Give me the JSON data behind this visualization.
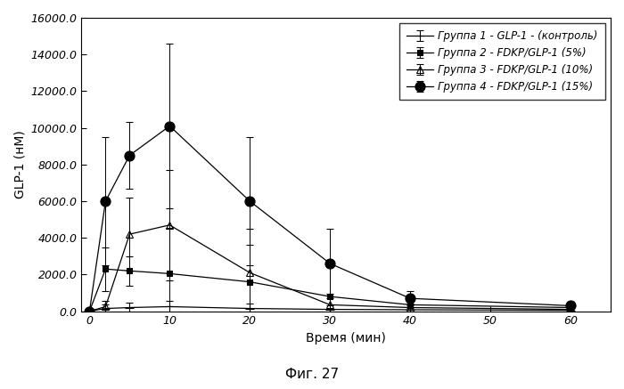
{
  "xlabel": "Время (мин)",
  "ylabel": "GLP-1 (нМ)",
  "caption": "Фиг. 27",
  "xlim": [
    -1,
    65
  ],
  "ylim": [
    0,
    16000
  ],
  "xticks": [
    0,
    10,
    20,
    30,
    40,
    50,
    60
  ],
  "xtick_labels": [
    "0",
    "10",
    "20",
    "30",
    "40",
    "50",
    "60"
  ],
  "yticks": [
    0.0,
    2000.0,
    4000.0,
    6000.0,
    8000.0,
    10000.0,
    12000.0,
    14000.0,
    16000.0
  ],
  "ytick_labels": [
    "0.0",
    "2000.0",
    "4000.0",
    "6000.0",
    "8000.0",
    "10000.0",
    "12000.0",
    "14000.0",
    "16000.0"
  ],
  "series": [
    {
      "label": "Группа 1 - GLP-1 - (контроль)",
      "x": [
        0,
        2,
        5,
        10,
        20,
        30,
        40,
        60
      ],
      "y": [
        0,
        150,
        200,
        250,
        150,
        100,
        80,
        50
      ],
      "yerr": [
        0,
        200,
        250,
        300,
        250,
        200,
        100,
        80
      ],
      "marker": "+",
      "markersize": 7,
      "linewidth": 0.9,
      "color": "#000000",
      "markerfacecolor": "none"
    },
    {
      "label": "Группа 2 - FDKP/GLP-1 (5%)",
      "x": [
        0,
        2,
        5,
        10,
        20,
        30,
        40,
        60
      ],
      "y": [
        0,
        2300,
        2200,
        2050,
        1600,
        800,
        350,
        200
      ],
      "yerr": [
        0,
        1200,
        800,
        2500,
        2000,
        1600,
        400,
        200
      ],
      "marker": "s",
      "markersize": 5,
      "linewidth": 0.9,
      "color": "#000000",
      "markerfacecolor": "#000000"
    },
    {
      "label": "Группа 3 - FDKP/GLP-1 (10%)",
      "x": [
        0,
        2,
        5,
        10,
        20,
        30,
        40,
        60
      ],
      "y": [
        0,
        250,
        4200,
        4700,
        2100,
        350,
        200,
        100
      ],
      "yerr": [
        0,
        300,
        2000,
        3000,
        2400,
        600,
        200,
        150
      ],
      "marker": "^",
      "markersize": 6,
      "linewidth": 0.9,
      "color": "#000000",
      "markerfacecolor": "none"
    },
    {
      "label": "Группа 4 - FDKP/GLP-1 (15%)",
      "x": [
        0,
        2,
        5,
        10,
        20,
        30,
        40,
        60
      ],
      "y": [
        0,
        6000,
        8500,
        10100,
        6000,
        2600,
        700,
        300
      ],
      "yerr": [
        0,
        3500,
        1800,
        4500,
        3500,
        1900,
        400,
        200
      ],
      "marker": "o",
      "markersize": 8,
      "linewidth": 0.9,
      "color": "#000000",
      "markerfacecolor": "#000000"
    }
  ],
  "legend_loc": "upper right",
  "legend_fontsize": 8.5,
  "axis_label_fontsize": 10,
  "tick_fontsize": 9,
  "caption_fontsize": 11,
  "background_color": "#ffffff"
}
